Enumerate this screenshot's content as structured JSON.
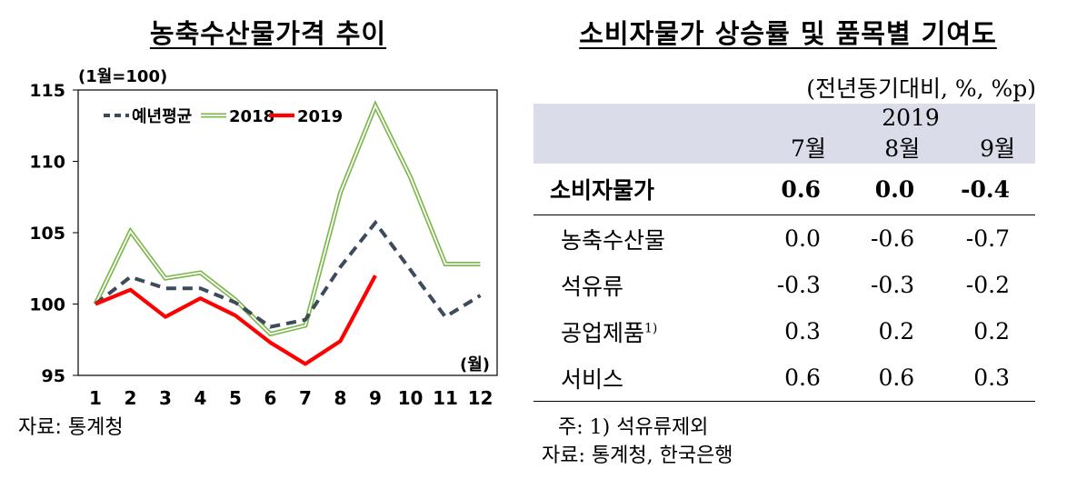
{
  "left": {
    "title": "농축수산물가격 추이",
    "source": "자료: 통계청"
  },
  "chart_data": {
    "type": "line",
    "title": "농축수산물가격 추이",
    "unit_note": "(1월=100)",
    "xlabel_unit": "(월)",
    "categories": [
      "1",
      "2",
      "3",
      "4",
      "5",
      "6",
      "7",
      "8",
      "9",
      "10",
      "11",
      "12"
    ],
    "ylim": [
      95,
      115
    ],
    "yticks": [
      95,
      100,
      105,
      110,
      115
    ],
    "legend_position": "top-left",
    "series": [
      {
        "name": "예년평균",
        "color": "#3d4a5c",
        "style": "dashed",
        "values": [
          100.0,
          101.9,
          101.1,
          101.1,
          100.1,
          98.4,
          98.9,
          102.6,
          105.7,
          102.4,
          99.1,
          100.6
        ]
      },
      {
        "name": "2018",
        "color": "#7ab648",
        "style": "double",
        "values": [
          100.0,
          105.1,
          101.8,
          102.2,
          100.3,
          97.9,
          98.5,
          107.8,
          113.9,
          108.9,
          102.8,
          102.8
        ]
      },
      {
        "name": "2019",
        "color": "#ff0000",
        "style": "solid",
        "values": [
          100.0,
          101.0,
          99.1,
          100.4,
          99.2,
          97.3,
          95.8,
          97.4,
          102.0,
          null,
          null,
          null
        ]
      }
    ]
  },
  "table": {
    "title": "소비자물가 상승률 및 품목별 기여도",
    "unit": "(전년동기대비, %, %p)",
    "year": "2019",
    "months": [
      "7월",
      "8월",
      "9월"
    ],
    "rows": [
      {
        "label": "소비자물가",
        "values": [
          "0.6",
          "0.0",
          "-0.4"
        ]
      },
      {
        "label": "농축수산물",
        "values": [
          "0.0",
          "-0.6",
          "-0.7"
        ]
      },
      {
        "label": "석유류",
        "values": [
          "-0.3",
          "-0.3",
          "-0.2"
        ]
      },
      {
        "label": "공업제품",
        "values": [
          "0.3",
          "0.2",
          "0.2"
        ]
      },
      {
        "label": "서비스",
        "values": [
          "0.6",
          "0.6",
          "0.3"
        ]
      }
    ],
    "footnote_mark": "1)",
    "note": "주: 1) 석유류제외",
    "source": "자료: 통계청, 한국은행"
  }
}
